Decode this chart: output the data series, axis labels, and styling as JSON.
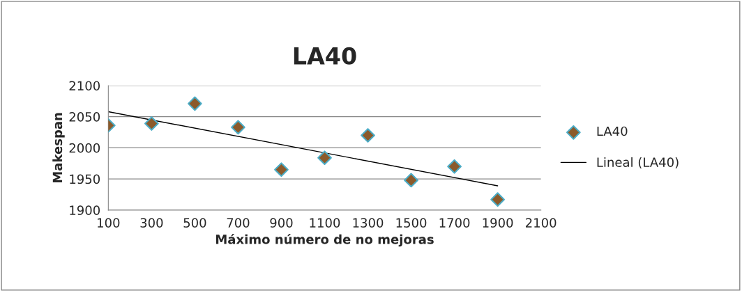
{
  "chart_data": {
    "type": "scatter",
    "title": "LA40",
    "xlabel": "Máximo número de no mejoras",
    "ylabel": "Makespan",
    "xlim": [
      100,
      2100
    ],
    "xticks": [
      100,
      300,
      500,
      700,
      900,
      1100,
      1300,
      1500,
      1700,
      1900,
      2100
    ],
    "ylim": [
      1900,
      2100
    ],
    "yticks": [
      1900,
      1950,
      2000,
      2050,
      2100
    ],
    "grid": "y",
    "legend": "right",
    "series": [
      {
        "name": "LA40",
        "color": "#8b5a2b",
        "marker": "diamond",
        "x": [
          100,
          300,
          500,
          700,
          900,
          1100,
          1300,
          1500,
          1700,
          1900
        ],
        "values": [
          2036,
          2039,
          2071,
          2033,
          1965,
          1984,
          2020,
          1948,
          1970,
          1917
        ]
      },
      {
        "name": "Lineal (LA40)",
        "type": "line",
        "color": "#000000",
        "x": [
          100,
          1900
        ],
        "values": [
          2058,
          1939
        ]
      }
    ]
  }
}
